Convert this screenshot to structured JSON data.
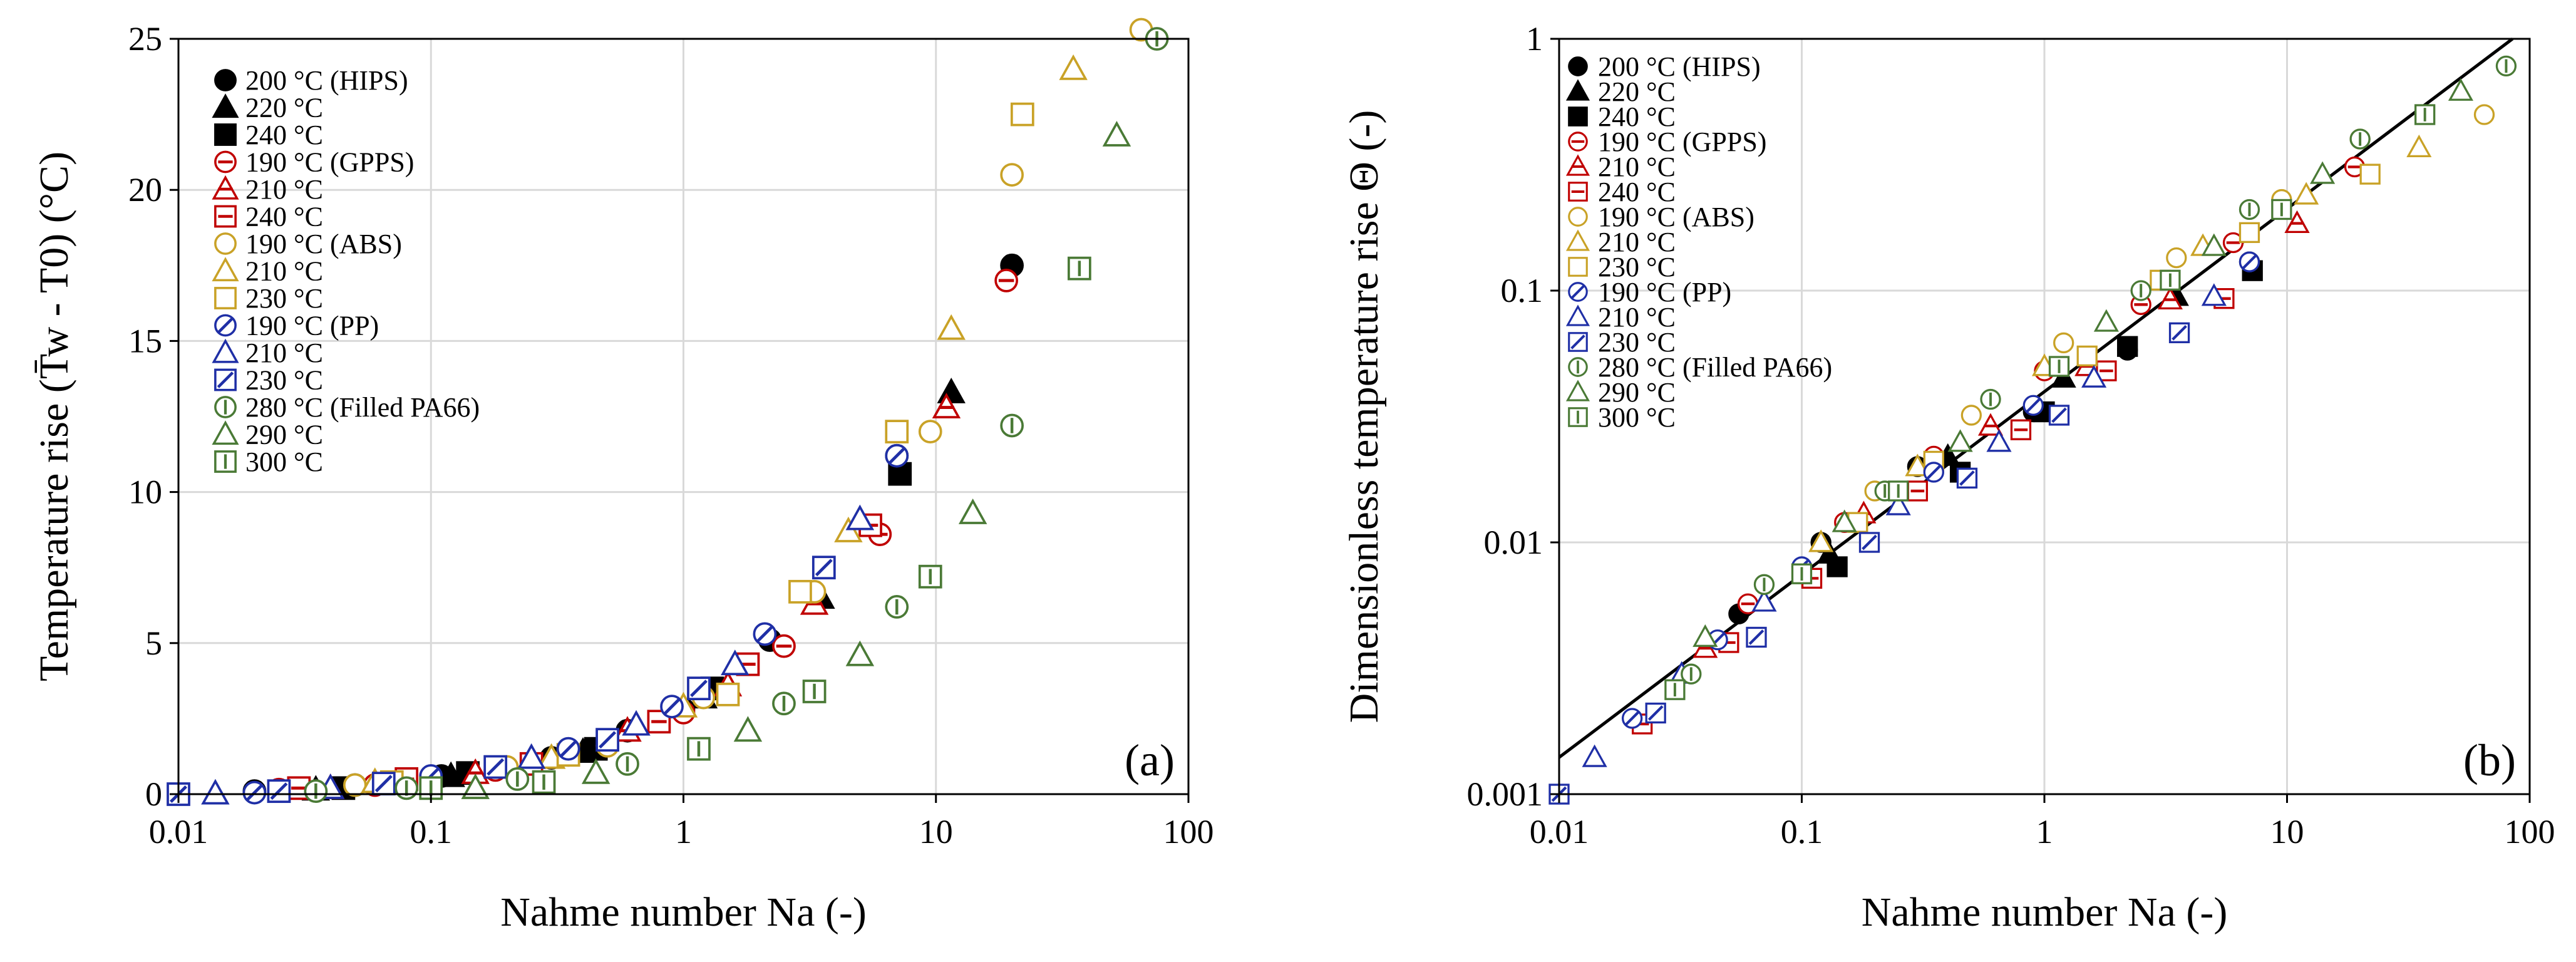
{
  "colors": {
    "black": "#000000",
    "red": "#c00000",
    "gold": "#c9a227",
    "blue": "#1f2fa6",
    "green": "#4a7a36",
    "grid": "#d9d9d9"
  },
  "chart_data": [
    {
      "panel": "(a)",
      "type": "scatter",
      "xscale": "log",
      "xlim": [
        0.01,
        100
      ],
      "ylim": [
        0,
        25
      ],
      "xticks": [
        0.01,
        0.1,
        1,
        10,
        100
      ],
      "xtick_labels": [
        "0.01",
        "0.1",
        "1",
        "10",
        "100"
      ],
      "yticks": [
        0,
        5,
        10,
        15,
        20,
        25
      ],
      "ytick_labels": [
        "0",
        "5",
        "10",
        "15",
        "20",
        "25"
      ],
      "xlabel": "Nahme number Na (-)",
      "ylabel": "Temperature rise (T̄w - T0) (°C)",
      "legend_position": "top-left",
      "series": [
        {
          "name": "200 °C (HIPS)",
          "marker": "circle",
          "style": "filled",
          "color": "black",
          "x": [
            0.02,
            0.05,
            0.11,
            0.3,
            0.6,
            1.0,
            2.2,
            7.0,
            20
          ],
          "y": [
            0.1,
            0.3,
            0.6,
            1.2,
            2.1,
            2.8,
            5.1,
            11.2,
            17.5
          ]
        },
        {
          "name": "220 °C",
          "marker": "triangle",
          "style": "filled",
          "color": "black",
          "x": [
            0.035,
            0.12,
            0.4,
            1.2,
            3.5,
            11.5
          ],
          "y": [
            0.15,
            0.6,
            1.4,
            3.2,
            6.5,
            13.3
          ]
        },
        {
          "name": "240 °C",
          "marker": "square",
          "style": "filled",
          "color": "black",
          "x": [
            0.045,
            0.14,
            0.45,
            1.3,
            7.2
          ],
          "y": [
            0.2,
            0.7,
            1.5,
            3.5,
            10.6
          ]
        },
        {
          "name": "190 °C (GPPS)",
          "marker": "circle",
          "style": "hbar",
          "color": "red",
          "x": [
            0.025,
            0.06,
            0.18,
            0.35,
            1.0,
            2.5,
            6.0,
            19
          ],
          "y": [
            0.15,
            0.3,
            0.8,
            1.3,
            2.7,
            4.9,
            8.6,
            17
          ]
        },
        {
          "name": "210 °C",
          "marker": "triangle",
          "style": "hbar",
          "color": "red",
          "x": [
            0.04,
            0.15,
            0.6,
            1.5,
            3.3,
            11
          ],
          "y": [
            0.2,
            0.7,
            2.1,
            3.6,
            6.3,
            12.8
          ]
        },
        {
          "name": "240 °C",
          "marker": "square",
          "style": "hbar",
          "color": "red",
          "x": [
            0.03,
            0.08,
            0.25,
            0.8,
            1.8,
            5.5
          ],
          "y": [
            0.2,
            0.5,
            1.0,
            2.4,
            4.3,
            8.9
          ]
        },
        {
          "name": "190 °C (ABS)",
          "marker": "circle",
          "style": "open",
          "color": "gold",
          "x": [
            0.05,
            0.2,
            0.5,
            1.2,
            3.3,
            9.5,
            20,
            65
          ],
          "y": [
            0.3,
            0.9,
            1.6,
            3.2,
            6.7,
            12,
            20.5,
            25.3
          ]
        },
        {
          "name": "210 °C",
          "marker": "triangle",
          "style": "open",
          "color": "gold",
          "x": [
            0.06,
            0.3,
            1.0,
            4.5,
            11.5,
            35
          ],
          "y": [
            0.4,
            1.2,
            2.9,
            8.7,
            15.4,
            24
          ]
        },
        {
          "name": "230 °C",
          "marker": "square",
          "style": "open",
          "color": "gold",
          "x": [
            0.07,
            0.35,
            1.5,
            2.9,
            7.0,
            22
          ],
          "y": [
            0.4,
            1.3,
            3.3,
            6.7,
            12,
            22.5
          ]
        },
        {
          "name": "190 °C (PP)",
          "marker": "circle",
          "style": "diag",
          "color": "blue",
          "x": [
            0.02,
            0.1,
            0.35,
            0.9,
            2.1,
            7.0
          ],
          "y": [
            0.05,
            0.6,
            1.5,
            2.9,
            5.3,
            11.2
          ]
        },
        {
          "name": "210 °C",
          "marker": "triangle",
          "style": "open",
          "color": "blue",
          "x": [
            0.014,
            0.04,
            0.25,
            0.65,
            1.6,
            5.0
          ],
          "y": [
            0.02,
            0.2,
            1.2,
            2.3,
            4.3,
            9.1
          ]
        },
        {
          "name": "230 °C",
          "marker": "square",
          "style": "diag",
          "color": "blue",
          "x": [
            0.01,
            0.025,
            0.065,
            0.18,
            0.5,
            1.15,
            3.6
          ],
          "y": [
            0.0,
            0.1,
            0.35,
            0.9,
            1.8,
            3.5,
            7.5
          ]
        },
        {
          "name": "280 °C (Filled PA66)",
          "marker": "circle",
          "style": "vbar",
          "color": "green",
          "x": [
            0.035,
            0.08,
            0.22,
            0.6,
            2.5,
            7.0,
            20,
            75
          ],
          "y": [
            0.1,
            0.2,
            0.5,
            1.0,
            3.0,
            6.2,
            12.2,
            25
          ]
        },
        {
          "name": "290 °C",
          "marker": "triangle",
          "style": "open",
          "color": "green",
          "x": [
            0.15,
            0.45,
            1.8,
            5.0,
            14,
            52
          ],
          "y": [
            0.2,
            0.7,
            2.1,
            4.6,
            9.3,
            21.8
          ]
        },
        {
          "name": "300 °C",
          "marker": "square",
          "style": "vbar",
          "color": "green",
          "x": [
            0.1,
            0.28,
            1.15,
            3.3,
            9.5,
            37
          ],
          "y": [
            0.2,
            0.4,
            1.5,
            3.4,
            7.2,
            17.4
          ]
        }
      ],
      "annotations": []
    },
    {
      "panel": "(b)",
      "type": "scatter",
      "xscale": "log",
      "yscale": "log",
      "xlim": [
        0.01,
        100
      ],
      "ylim": [
        0.001,
        1
      ],
      "xticks": [
        0.01,
        0.1,
        1,
        10,
        100
      ],
      "xtick_labels": [
        "0.01",
        "0.1",
        "1",
        "10",
        "100"
      ],
      "yticks": [
        0.001,
        0.01,
        0.1,
        1
      ],
      "ytick_labels": [
        "0.001",
        "0.01",
        "0.1",
        "1"
      ],
      "xlabel": "Nahme number Na (-)",
      "ylabel": "Dimensionless temperature rise Θ (-)",
      "legend_position": "top-left",
      "fit_line": {
        "x": [
          0.01,
          85
        ],
        "y": [
          0.0014,
          1.0
        ]
      },
      "series": [
        {
          "name": "200 °C (HIPS)",
          "marker": "circle",
          "style": "filled",
          "color": "black",
          "x": [
            0.055,
            0.12,
            0.3,
            0.9,
            2.2,
            7.0
          ],
          "y": [
            0.0052,
            0.01,
            0.02,
            0.033,
            0.058,
            0.13
          ]
        },
        {
          "name": "220 °C",
          "marker": "triangle",
          "style": "filled",
          "color": "black",
          "x": [
            0.13,
            0.4,
            1.2,
            3.5,
            11
          ],
          "y": [
            0.009,
            0.022,
            0.045,
            0.095,
            0.185
          ]
        },
        {
          "name": "240 °C",
          "marker": "square",
          "style": "filled",
          "color": "black",
          "x": [
            0.14,
            0.45,
            1.0,
            2.2,
            7.2
          ],
          "y": [
            0.008,
            0.019,
            0.033,
            0.06,
            0.12
          ]
        },
        {
          "name": "190 °C (GPPS)",
          "marker": "circle",
          "style": "hbar",
          "color": "red",
          "x": [
            0.06,
            0.15,
            0.35,
            1.0,
            2.5,
            6.0,
            19
          ],
          "y": [
            0.0057,
            0.012,
            0.022,
            0.048,
            0.088,
            0.155,
            0.31
          ]
        },
        {
          "name": "210 °C",
          "marker": "triangle",
          "style": "hbar",
          "color": "red",
          "x": [
            0.04,
            0.18,
            0.6,
            1.5,
            3.3,
            11
          ],
          "y": [
            0.0038,
            0.013,
            0.029,
            0.05,
            0.092,
            0.185
          ]
        },
        {
          "name": "240 °C",
          "marker": "square",
          "style": "hbar",
          "color": "red",
          "x": [
            0.022,
            0.05,
            0.11,
            0.3,
            0.8,
            1.8,
            5.5
          ],
          "y": [
            0.0019,
            0.004,
            0.0072,
            0.016,
            0.028,
            0.048,
            0.093
          ]
        },
        {
          "name": "190 °C (ABS)",
          "marker": "circle",
          "style": "open",
          "color": "gold",
          "x": [
            0.2,
            0.5,
            1.2,
            3.5,
            9.5,
            20,
            65
          ],
          "y": [
            0.016,
            0.032,
            0.062,
            0.135,
            0.23,
            0.4,
            0.5
          ]
        },
        {
          "name": "210 °C",
          "marker": "triangle",
          "style": "open",
          "color": "gold",
          "x": [
            0.12,
            0.3,
            1.0,
            4.5,
            12,
            35
          ],
          "y": [
            0.01,
            0.02,
            0.05,
            0.15,
            0.24,
            0.37
          ]
        },
        {
          "name": "230 °C",
          "marker": "square",
          "style": "open",
          "color": "gold",
          "x": [
            0.17,
            0.35,
            1.5,
            3.0,
            7.0,
            22
          ],
          "y": [
            0.012,
            0.021,
            0.055,
            0.11,
            0.17,
            0.29
          ]
        },
        {
          "name": "190 °C (PP)",
          "marker": "circle",
          "style": "diag",
          "color": "blue",
          "x": [
            0.02,
            0.045,
            0.1,
            0.35,
            0.9,
            7.0
          ],
          "y": [
            0.002,
            0.0041,
            0.008,
            0.019,
            0.035,
            0.13
          ]
        },
        {
          "name": "210 °C",
          "marker": "triangle",
          "style": "open",
          "color": "blue",
          "x": [
            0.014,
            0.032,
            0.07,
            0.25,
            0.65,
            1.6,
            5.0
          ],
          "y": [
            0.0014,
            0.003,
            0.0058,
            0.014,
            0.025,
            0.045,
            0.095
          ]
        },
        {
          "name": "230 °C",
          "marker": "square",
          "style": "diag",
          "color": "blue",
          "x": [
            0.01,
            0.025,
            0.065,
            0.19,
            0.48,
            1.15,
            3.6
          ],
          "y": [
            0.001,
            0.0021,
            0.0042,
            0.01,
            0.018,
            0.032,
            0.068
          ]
        },
        {
          "name": "280 °C (Filled PA66)",
          "marker": "circle",
          "style": "vbar",
          "color": "green",
          "x": [
            0.035,
            0.07,
            0.22,
            0.6,
            2.5,
            7.0,
            20,
            80
          ],
          "y": [
            0.003,
            0.0068,
            0.016,
            0.037,
            0.1,
            0.21,
            0.4,
            0.78
          ]
        },
        {
          "name": "290 °C",
          "marker": "triangle",
          "style": "open",
          "color": "green",
          "x": [
            0.04,
            0.15,
            0.45,
            1.8,
            5.0,
            14,
            52
          ],
          "y": [
            0.0042,
            0.012,
            0.025,
            0.075,
            0.15,
            0.29,
            0.62
          ]
        },
        {
          "name": "300 °C",
          "marker": "square",
          "style": "vbar",
          "color": "green",
          "x": [
            0.03,
            0.1,
            0.25,
            1.15,
            3.3,
            9.5,
            37
          ],
          "y": [
            0.0026,
            0.0075,
            0.016,
            0.05,
            0.11,
            0.21,
            0.5
          ]
        }
      ],
      "annotations": []
    }
  ]
}
